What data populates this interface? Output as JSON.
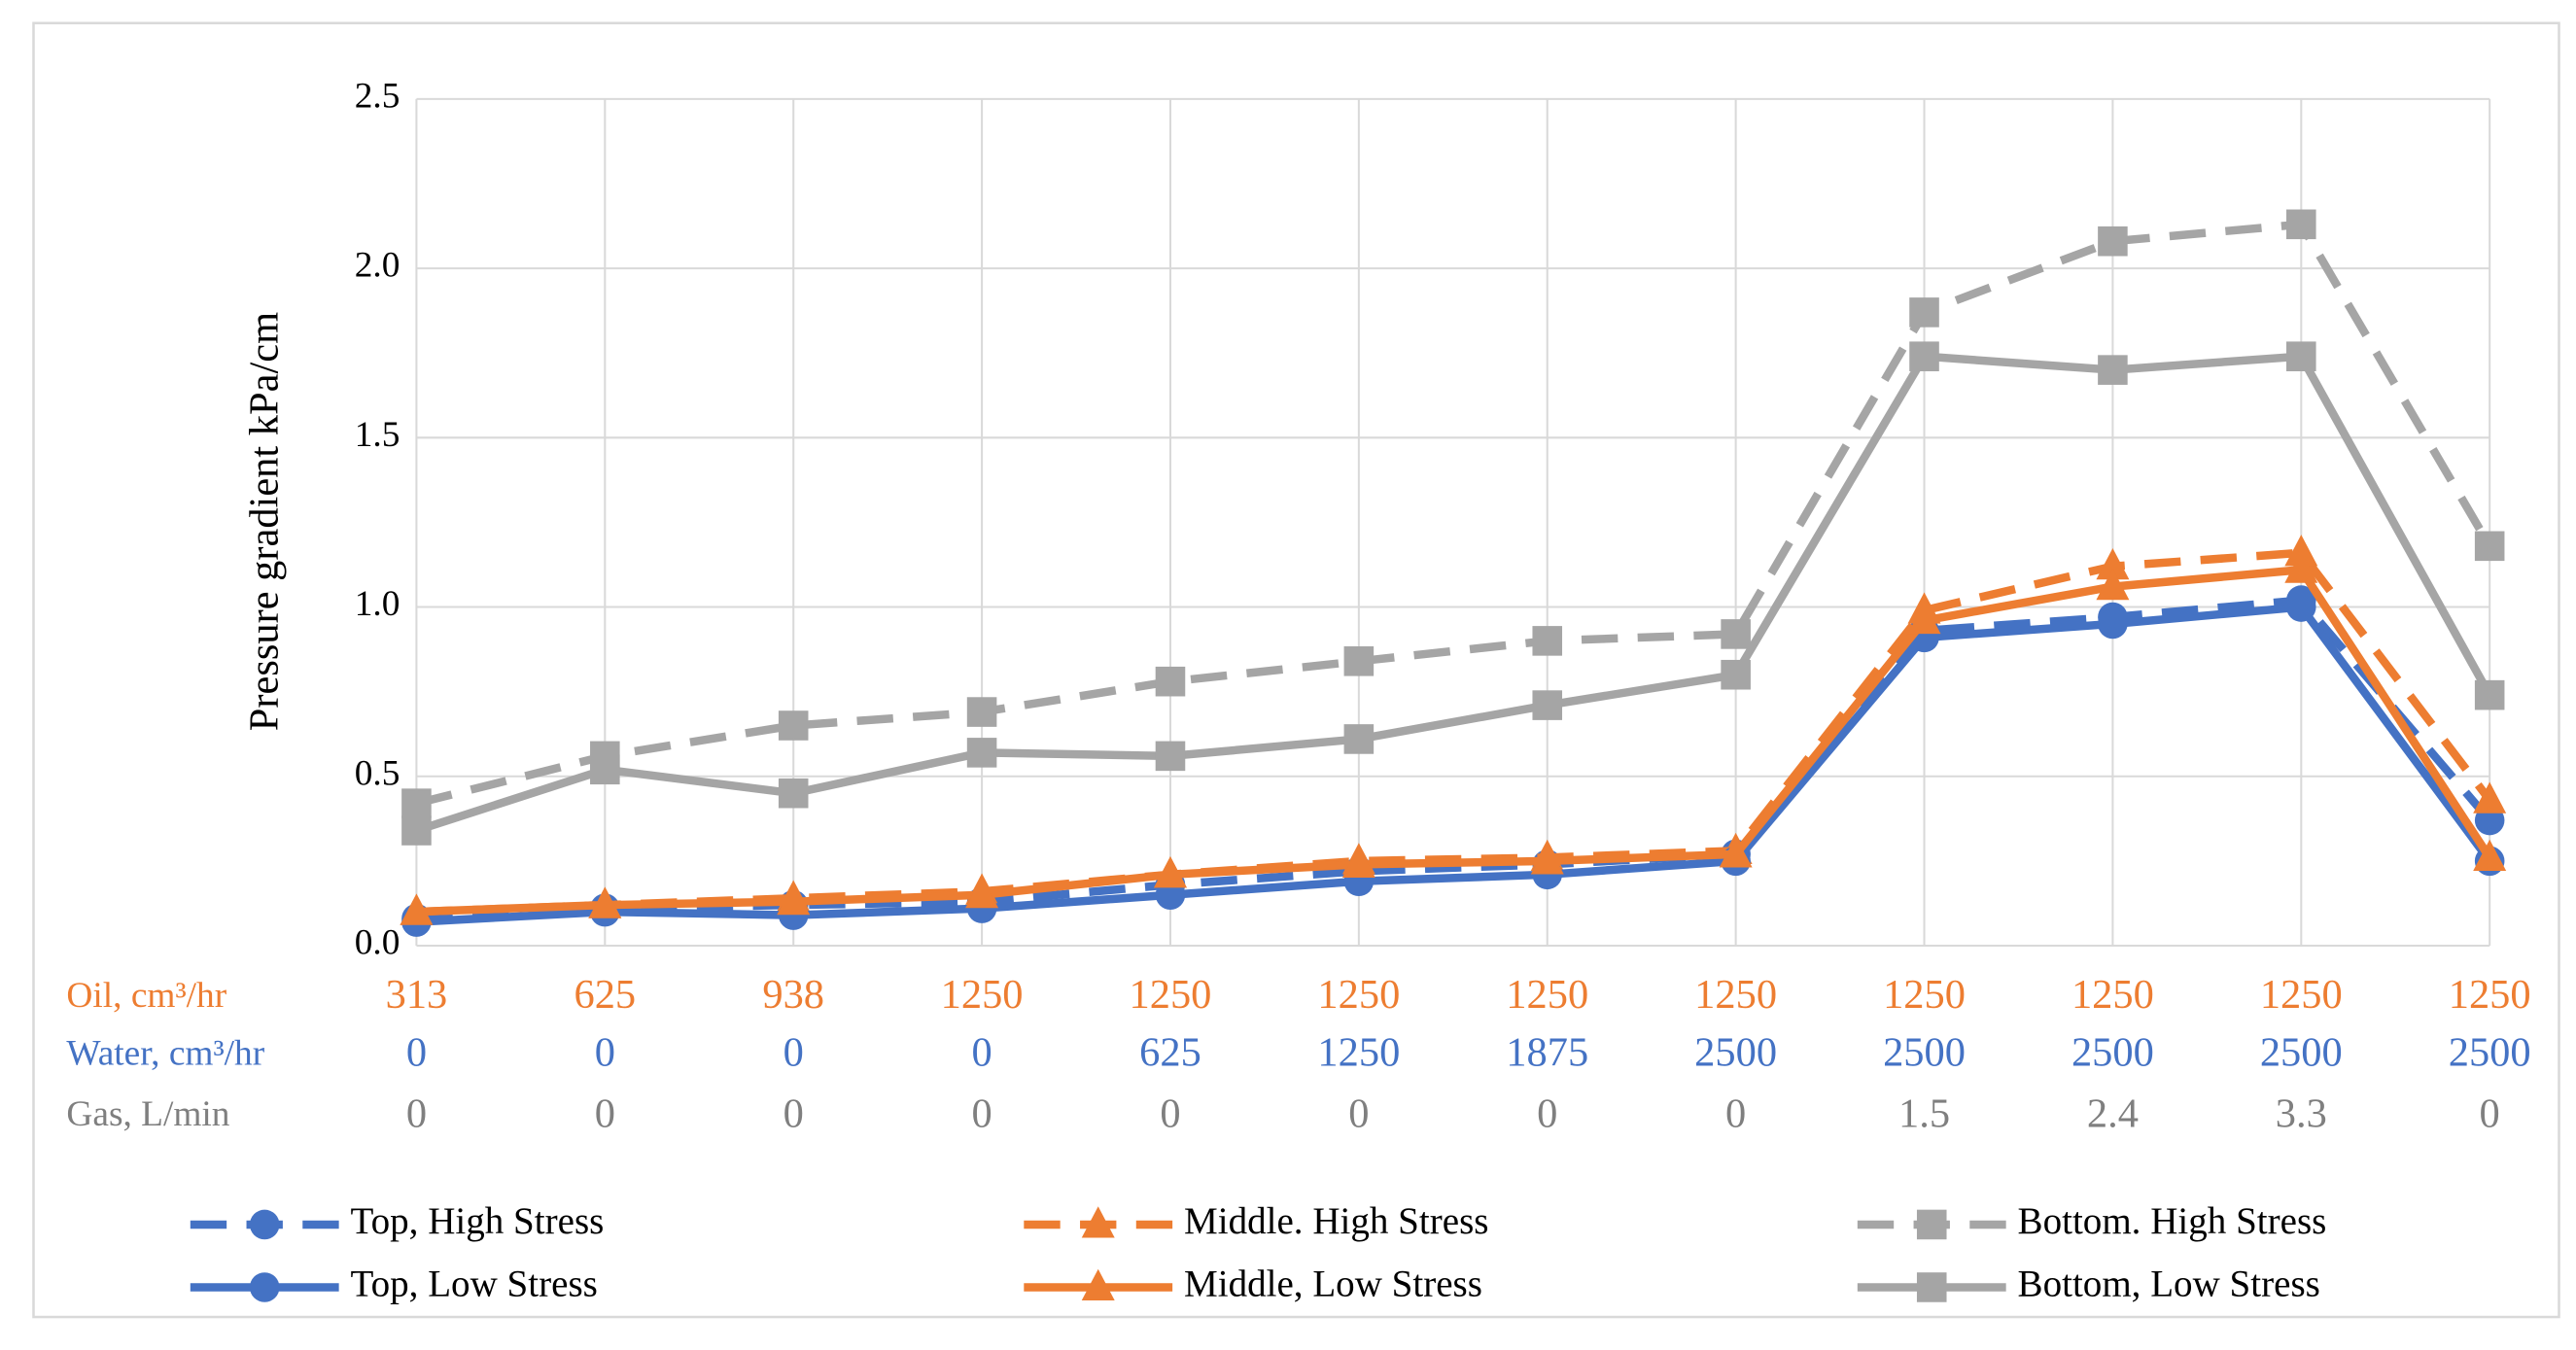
{
  "chart_data": {
    "type": "line",
    "y_label": "Pressure gradient kPa/cm",
    "ylim": [
      0,
      2.5
    ],
    "yticks": [
      {
        "value": 0,
        "label": "0.0"
      },
      {
        "value": 0.5,
        "label": "0.5"
      },
      {
        "value": 1,
        "label": "1.0"
      },
      {
        "value": 1.5,
        "label": "1.5"
      },
      {
        "value": 2,
        "label": "2.0"
      },
      {
        "value": 2.5,
        "label": "2.5"
      }
    ],
    "grid": true,
    "category_rows": [
      {
        "title": "Oil, cm³/hr",
        "color": "#ed7d31",
        "labels": [
          "313",
          "625",
          "938",
          "1250",
          "1250",
          "1250",
          "1250",
          "1250",
          "1250",
          "1250",
          "1250",
          "1250"
        ]
      },
      {
        "title": "Water, cm³/hr",
        "color": "#4472c4",
        "labels": [
          "0",
          "0",
          "0",
          "0",
          "625",
          "1250",
          "1875",
          "2500",
          "2500",
          "2500",
          "2500",
          "2500"
        ]
      },
      {
        "title": "Gas, L/min",
        "color": "#7f7f7f",
        "labels": [
          "0",
          "0",
          "0",
          "0",
          "0",
          "0",
          "0",
          "0",
          "1.5",
          "2.4",
          "3.3",
          "0"
        ]
      }
    ],
    "series": [
      {
        "name": "Top, High Stress",
        "color": "#4472c4",
        "dashed": true,
        "marker": "circle",
        "values": [
          0.08,
          0.11,
          0.12,
          0.13,
          0.18,
          0.22,
          0.24,
          0.27,
          0.93,
          0.97,
          1.02,
          0.37
        ]
      },
      {
        "name": "Middle. High Stress",
        "color": "#ed7d31",
        "dashed": true,
        "marker": "triangle",
        "values": [
          0.1,
          0.12,
          0.14,
          0.16,
          0.21,
          0.25,
          0.26,
          0.28,
          0.99,
          1.12,
          1.16,
          0.43
        ]
      },
      {
        "name": "Bottom. High Stress",
        "color": "#a5a5a5",
        "dashed": true,
        "marker": "square",
        "values": [
          0.42,
          0.56,
          0.65,
          0.69,
          0.78,
          0.84,
          0.9,
          0.92,
          1.87,
          2.08,
          2.13,
          1.18
        ]
      },
      {
        "name": "Top, Low Stress",
        "color": "#4472c4",
        "dashed": false,
        "marker": "circle",
        "values": [
          0.07,
          0.1,
          0.09,
          0.11,
          0.15,
          0.19,
          0.21,
          0.25,
          0.91,
          0.95,
          1.0,
          0.25
        ]
      },
      {
        "name": "Middle, Low Stress",
        "color": "#ed7d31",
        "dashed": false,
        "marker": "triangle",
        "values": [
          0.1,
          0.12,
          0.13,
          0.15,
          0.21,
          0.24,
          0.25,
          0.27,
          0.96,
          1.06,
          1.11,
          0.26
        ]
      },
      {
        "name": "Bottom, Low Stress",
        "color": "#a5a5a5",
        "dashed": false,
        "marker": "square",
        "values": [
          0.34,
          0.52,
          0.45,
          0.57,
          0.56,
          0.61,
          0.71,
          0.8,
          1.74,
          1.7,
          1.74,
          0.74
        ]
      }
    ]
  }
}
